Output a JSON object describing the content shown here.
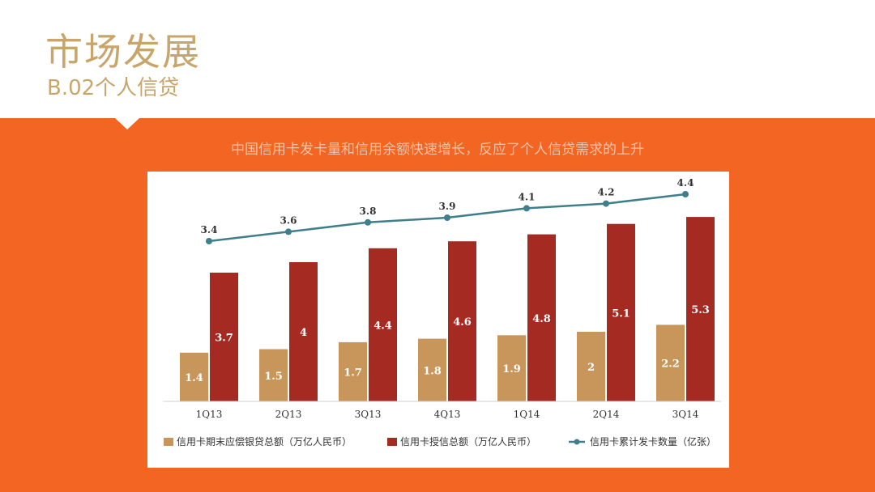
{
  "slide": {
    "title": "市场发展",
    "subtitle": "B.02个人信贷",
    "caption": "中国信用卡发卡量和信用余额快速增长，反应了个人信贷需求的上升"
  },
  "colors": {
    "orange": "#f26522",
    "gold": "#c8a56a",
    "bar_gold": "#c8965a",
    "bar_red": "#a52a22",
    "line": "#3f7f8c"
  },
  "chart_data": {
    "type": "bar",
    "categories": [
      "1Q13",
      "2Q13",
      "3Q13",
      "4Q13",
      "1Q14",
      "2Q14",
      "3Q14"
    ],
    "series": [
      {
        "name": "信用卡期末应偿银贷总额（万亿人民币）",
        "type": "bar",
        "color": "#c8965a",
        "values": [
          1.4,
          1.5,
          1.7,
          1.8,
          1.9,
          2,
          2.2
        ]
      },
      {
        "name": "信用卡授信总额（万亿人民币）",
        "type": "bar",
        "color": "#a52a22",
        "values": [
          3.7,
          4,
          4.4,
          4.6,
          4.8,
          5.1,
          5.3
        ]
      },
      {
        "name": "信用卡累计发卡数量（亿张）",
        "type": "line",
        "color": "#3f7f8c",
        "values": [
          3.4,
          3.6,
          3.8,
          3.9,
          4.1,
          4.2,
          4.4
        ]
      }
    ],
    "grid": false,
    "legend": "bottom"
  }
}
